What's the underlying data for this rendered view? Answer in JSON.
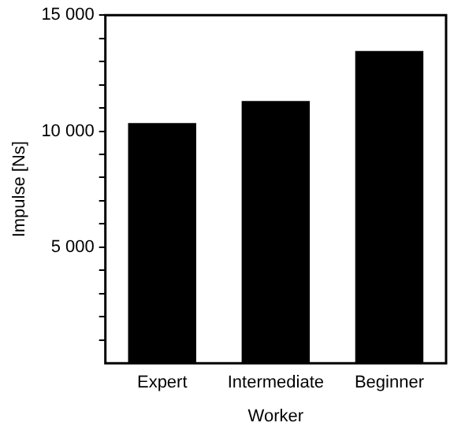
{
  "chart_data": {
    "type": "bar",
    "xlabel": "Worker",
    "ylabel": "Impulse [Ns]",
    "categories": [
      "Expert",
      "Intermediate",
      "Beginner"
    ],
    "values": [
      10350,
      11300,
      13450
    ],
    "color": "#000000",
    "ylim": [
      0,
      15000
    ],
    "yticks": [
      {
        "value": 1000,
        "label": null
      },
      {
        "value": 2000,
        "label": null
      },
      {
        "value": 3000,
        "label": null
      },
      {
        "value": 4000,
        "label": null
      },
      {
        "value": 5000,
        "label": "5 000"
      },
      {
        "value": 6000,
        "label": null
      },
      {
        "value": 7000,
        "label": null
      },
      {
        "value": 8000,
        "label": null
      },
      {
        "value": 9000,
        "label": null
      },
      {
        "value": 10000,
        "label": "10 000"
      },
      {
        "value": 11000,
        "label": null
      },
      {
        "value": 12000,
        "label": null
      },
      {
        "value": 13000,
        "label": null
      },
      {
        "value": 14000,
        "label": null
      },
      {
        "value": 15000,
        "label": "15 000"
      }
    ],
    "grid": false,
    "legend": false
  }
}
